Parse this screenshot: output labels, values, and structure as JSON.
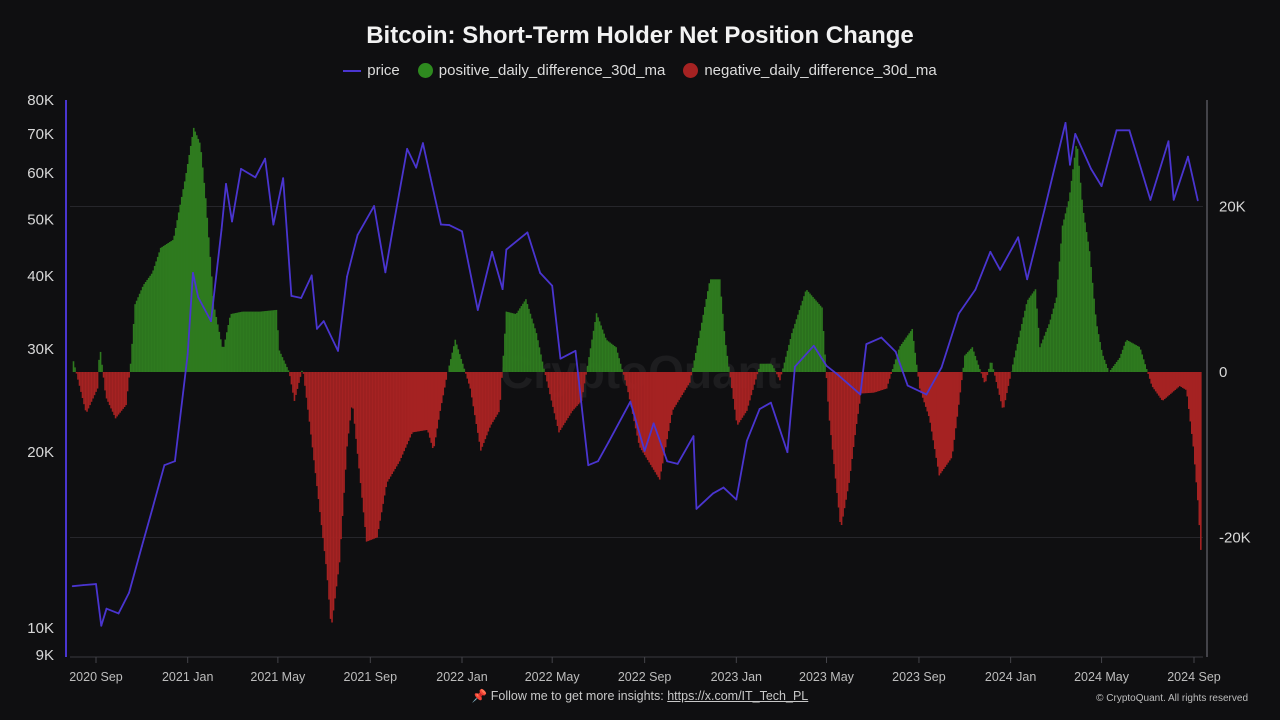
{
  "title": "Bitcoin: Short-Term Holder Net Position Change",
  "legend": {
    "price": "price",
    "positive": "positive_daily_difference_30d_ma",
    "negative": "negative_daily_difference_30d_ma"
  },
  "colors": {
    "price": "#4a35d0",
    "positive": "#2e7a1f",
    "negative": "#a52222",
    "background": "#0f0f11"
  },
  "footer": {
    "pin_icon": "pushpin-icon",
    "text": "📌 Follow me to get more insights: ",
    "link": "https://x.com/IT_Tech_PL",
    "copyright": "© CryptoQuant. All rights reserved"
  },
  "watermark": "CryptoQuant",
  "chart_data": {
    "type": "bar",
    "title": "Bitcoin: Short-Term Holder Net Position Change",
    "x_ticks": [
      "2020 Sep",
      "2021 Jan",
      "2021 May",
      "2021 Sep",
      "2022 Jan",
      "2022 May",
      "2022 Sep",
      "2023 Jan",
      "2023 May",
      "2023 Sep",
      "2024 Jan",
      "2024 May",
      "2024 Sep"
    ],
    "x_tick_dates": [
      "2020-09-01",
      "2021-01-01",
      "2021-05-01",
      "2021-09-01",
      "2022-01-01",
      "2022-05-01",
      "2022-09-01",
      "2023-01-01",
      "2023-05-01",
      "2023-09-01",
      "2024-01-01",
      "2024-05-01",
      "2024-09-01"
    ],
    "left_axis": {
      "scale": "log",
      "range": [
        9000,
        80000
      ],
      "ticks": [
        80000,
        70000,
        60000,
        50000,
        40000,
        30000,
        20000,
        10000,
        9000
      ],
      "tick_labels": [
        "80K",
        "70K",
        "60K",
        "50K",
        "40K",
        "30K",
        "20K",
        "10K",
        "9K"
      ]
    },
    "right_axis": {
      "scale": "linear",
      "ticks": [
        20000,
        0,
        -20000
      ],
      "tick_labels": [
        "20K",
        "0",
        "-20K"
      ]
    },
    "grid": true,
    "legend_position": "top",
    "series": [
      {
        "name": "price",
        "type": "line",
        "axis": "left",
        "points": [
          [
            "2020-08-01",
            11800
          ],
          [
            "2020-08-15",
            11850
          ],
          [
            "2020-09-01",
            11900
          ],
          [
            "2020-09-08",
            10100
          ],
          [
            "2020-09-15",
            10800
          ],
          [
            "2020-10-01",
            10600
          ],
          [
            "2020-10-15",
            11500
          ],
          [
            "2020-11-01",
            13800
          ],
          [
            "2020-11-15",
            16000
          ],
          [
            "2020-12-01",
            19000
          ],
          [
            "2020-12-15",
            19300
          ],
          [
            "2021-01-01",
            29400
          ],
          [
            "2021-01-08",
            40500
          ],
          [
            "2021-01-15",
            36800
          ],
          [
            "2021-02-01",
            33500
          ],
          [
            "2021-02-15",
            48000
          ],
          [
            "2021-02-21",
            57500
          ],
          [
            "2021-03-01",
            49600
          ],
          [
            "2021-03-13",
            61000
          ],
          [
            "2021-04-01",
            59000
          ],
          [
            "2021-04-14",
            63500
          ],
          [
            "2021-04-25",
            49000
          ],
          [
            "2021-05-08",
            58800
          ],
          [
            "2021-05-19",
            37000
          ],
          [
            "2021-06-01",
            36700
          ],
          [
            "2021-06-15",
            40100
          ],
          [
            "2021-06-22",
            32500
          ],
          [
            "2021-07-01",
            33500
          ],
          [
            "2021-07-20",
            29800
          ],
          [
            "2021-08-01",
            39900
          ],
          [
            "2021-08-15",
            47000
          ],
          [
            "2021-09-06",
            52700
          ],
          [
            "2021-09-21",
            40600
          ],
          [
            "2021-10-01",
            48200
          ],
          [
            "2021-10-20",
            66000
          ],
          [
            "2021-11-01",
            61300
          ],
          [
            "2021-11-10",
            67500
          ],
          [
            "2021-11-20",
            59000
          ],
          [
            "2021-12-04",
            49000
          ],
          [
            "2021-12-15",
            48900
          ],
          [
            "2022-01-01",
            47700
          ],
          [
            "2022-01-22",
            35000
          ],
          [
            "2022-02-10",
            44000
          ],
          [
            "2022-02-24",
            38000
          ],
          [
            "2022-03-01",
            44400
          ],
          [
            "2022-03-29",
            47500
          ],
          [
            "2022-04-15",
            40500
          ],
          [
            "2022-05-01",
            38500
          ],
          [
            "2022-05-12",
            28900
          ],
          [
            "2022-06-01",
            29800
          ],
          [
            "2022-06-18",
            19000
          ],
          [
            "2022-07-01",
            19300
          ],
          [
            "2022-07-15",
            20800
          ],
          [
            "2022-08-13",
            24400
          ],
          [
            "2022-09-01",
            20100
          ],
          [
            "2022-09-13",
            22400
          ],
          [
            "2022-10-01",
            19300
          ],
          [
            "2022-10-15",
            19100
          ],
          [
            "2022-11-05",
            21300
          ],
          [
            "2022-11-09",
            16000
          ],
          [
            "2022-12-01",
            17000
          ],
          [
            "2022-12-15",
            17400
          ],
          [
            "2023-01-01",
            16600
          ],
          [
            "2023-01-15",
            20900
          ],
          [
            "2023-02-01",
            23700
          ],
          [
            "2023-02-16",
            24300
          ],
          [
            "2023-03-10",
            20000
          ],
          [
            "2023-03-20",
            28000
          ],
          [
            "2023-04-14",
            30400
          ],
          [
            "2023-05-01",
            28100
          ],
          [
            "2023-05-15",
            27200
          ],
          [
            "2023-06-15",
            25100
          ],
          [
            "2023-06-23",
            30600
          ],
          [
            "2023-07-13",
            31400
          ],
          [
            "2023-08-01",
            29700
          ],
          [
            "2023-08-17",
            26000
          ],
          [
            "2023-09-11",
            25100
          ],
          [
            "2023-10-01",
            27900
          ],
          [
            "2023-10-24",
            34500
          ],
          [
            "2023-11-15",
            37900
          ],
          [
            "2023-12-05",
            44000
          ],
          [
            "2023-12-18",
            41000
          ],
          [
            "2024-01-11",
            46600
          ],
          [
            "2024-01-23",
            39500
          ],
          [
            "2024-02-15",
            51900
          ],
          [
            "2024-03-01",
            62400
          ],
          [
            "2024-03-14",
            73100
          ],
          [
            "2024-03-20",
            62000
          ],
          [
            "2024-03-27",
            70000
          ],
          [
            "2024-04-17",
            61000
          ],
          [
            "2024-05-01",
            57000
          ],
          [
            "2024-05-21",
            71000
          ],
          [
            "2024-06-07",
            71000
          ],
          [
            "2024-07-05",
            54000
          ],
          [
            "2024-07-29",
            68000
          ],
          [
            "2024-08-05",
            54000
          ],
          [
            "2024-08-24",
            64000
          ],
          [
            "2024-09-06",
            53900
          ]
        ]
      },
      {
        "name": "daily_difference_30d_ma",
        "type": "bar",
        "axis": "right",
        "note_colors": "positive green / negative red",
        "points": [
          [
            "2020-08-01",
            1300
          ],
          [
            "2020-08-18",
            -5000
          ],
          [
            "2020-09-02",
            -2000
          ],
          [
            "2020-09-05",
            3200
          ],
          [
            "2020-09-13",
            -3000
          ],
          [
            "2020-09-26",
            -5600
          ],
          [
            "2020-10-10",
            -4000
          ],
          [
            "2020-10-16",
            1000
          ],
          [
            "2020-10-22",
            8200
          ],
          [
            "2020-11-02",
            10500
          ],
          [
            "2020-11-14",
            12000
          ],
          [
            "2020-11-25",
            15000
          ],
          [
            "2020-12-12",
            16000
          ],
          [
            "2020-12-28",
            23500
          ],
          [
            "2021-01-08",
            29500
          ],
          [
            "2021-01-17",
            27500
          ],
          [
            "2021-01-24",
            21000
          ],
          [
            "2021-02-04",
            8000
          ],
          [
            "2021-02-16",
            2600
          ],
          [
            "2021-02-26",
            7000
          ],
          [
            "2021-03-14",
            7300
          ],
          [
            "2021-04-06",
            7300
          ],
          [
            "2021-04-28",
            7500
          ],
          [
            "2021-05-02",
            2600
          ],
          [
            "2021-05-15",
            0
          ],
          [
            "2021-05-22",
            -3500
          ],
          [
            "2021-06-02",
            500
          ],
          [
            "2021-06-11",
            -6000
          ],
          [
            "2021-06-20",
            -13000
          ],
          [
            "2021-07-04",
            -24000
          ],
          [
            "2021-07-10",
            -31000
          ],
          [
            "2021-07-21",
            -23000
          ],
          [
            "2021-07-31",
            -9000
          ],
          [
            "2021-08-07",
            -3500
          ],
          [
            "2021-08-13",
            -9000
          ],
          [
            "2021-08-26",
            -20500
          ],
          [
            "2021-09-09",
            -20000
          ],
          [
            "2021-09-22",
            -13400
          ],
          [
            "2021-10-09",
            -10800
          ],
          [
            "2021-10-26",
            -7300
          ],
          [
            "2021-11-15",
            -7000
          ],
          [
            "2021-11-23",
            -9500
          ],
          [
            "2021-12-02",
            -4700
          ],
          [
            "2021-12-12",
            0
          ],
          [
            "2021-12-22",
            3900
          ],
          [
            "2022-01-01",
            1000
          ],
          [
            "2022-01-11",
            -2000
          ],
          [
            "2022-01-25",
            -9500
          ],
          [
            "2022-02-07",
            -6500
          ],
          [
            "2022-02-19",
            -4700
          ],
          [
            "2022-02-28",
            7300
          ],
          [
            "2022-03-13",
            7000
          ],
          [
            "2022-03-26",
            8800
          ],
          [
            "2022-04-09",
            4700
          ],
          [
            "2022-04-19",
            400
          ],
          [
            "2022-05-09",
            -7300
          ],
          [
            "2022-05-27",
            -4700
          ],
          [
            "2022-06-08",
            -3500
          ],
          [
            "2022-06-28",
            7100
          ],
          [
            "2022-07-11",
            3900
          ],
          [
            "2022-07-24",
            3000
          ],
          [
            "2022-08-08",
            -2000
          ],
          [
            "2022-08-24",
            -9000
          ],
          [
            "2022-09-20",
            -13000
          ],
          [
            "2022-10-07",
            -4700
          ],
          [
            "2022-10-30",
            -1300
          ],
          [
            "2022-11-13",
            5000
          ],
          [
            "2022-11-26",
            11200
          ],
          [
            "2022-12-09",
            11200
          ],
          [
            "2022-12-16",
            3900
          ],
          [
            "2023-01-01",
            -6500
          ],
          [
            "2023-01-14",
            -4700
          ],
          [
            "2023-02-01",
            1000
          ],
          [
            "2023-02-16",
            1000
          ],
          [
            "2023-02-27",
            -1000
          ],
          [
            "2023-03-15",
            4700
          ],
          [
            "2023-04-03",
            10000
          ],
          [
            "2023-04-24",
            7800
          ],
          [
            "2023-05-03",
            -5000
          ],
          [
            "2023-05-19",
            -19000
          ],
          [
            "2023-05-30",
            -13400
          ],
          [
            "2023-06-08",
            -6900
          ],
          [
            "2023-06-15",
            -2600
          ],
          [
            "2023-07-02",
            -2500
          ],
          [
            "2023-07-19",
            -2000
          ],
          [
            "2023-08-05",
            3000
          ],
          [
            "2023-08-22",
            5200
          ],
          [
            "2023-09-01",
            -2000
          ],
          [
            "2023-09-14",
            -5600
          ],
          [
            "2023-09-27",
            -12500
          ],
          [
            "2023-10-14",
            -10300
          ],
          [
            "2023-10-22",
            -4700
          ],
          [
            "2023-10-31",
            2000
          ],
          [
            "2023-11-10",
            3000
          ],
          [
            "2023-11-27",
            -1500
          ],
          [
            "2023-12-05",
            1500
          ],
          [
            "2023-12-21",
            -4700
          ],
          [
            "2024-01-06",
            2200
          ],
          [
            "2024-01-22",
            8600
          ],
          [
            "2024-02-02",
            10000
          ],
          [
            "2024-02-08",
            3000
          ],
          [
            "2024-02-21",
            6000
          ],
          [
            "2024-03-01",
            9000
          ],
          [
            "2024-03-09",
            17700
          ],
          [
            "2024-03-18",
            21000
          ],
          [
            "2024-03-28",
            28000
          ],
          [
            "2024-04-05",
            19800
          ],
          [
            "2024-04-14",
            14600
          ],
          [
            "2024-04-23",
            6000
          ],
          [
            "2024-05-01",
            2200
          ],
          [
            "2024-05-10",
            0
          ],
          [
            "2024-05-24",
            1700
          ],
          [
            "2024-06-02",
            3900
          ],
          [
            "2024-06-20",
            3000
          ],
          [
            "2024-07-06",
            -1700
          ],
          [
            "2024-07-20",
            -3500
          ],
          [
            "2024-08-12",
            -1700
          ],
          [
            "2024-08-21",
            -2200
          ],
          [
            "2024-08-30",
            -9000
          ],
          [
            "2024-09-05",
            -15500
          ],
          [
            "2024-09-09",
            -21500
          ]
        ]
      }
    ]
  }
}
